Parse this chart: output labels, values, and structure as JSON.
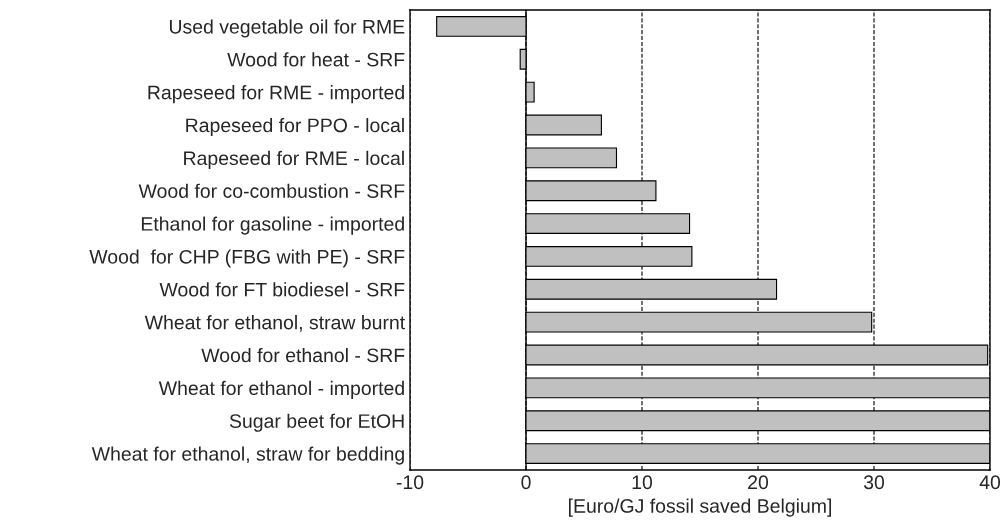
{
  "chart_data": {
    "type": "bar",
    "orientation": "horizontal",
    "categories": [
      "Used vegetable oil for RME",
      "Wood for heat - SRF",
      "Rapeseed for RME - imported",
      "Rapeseed for PPO - local",
      "Rapeseed for RME - local",
      "Wood for co-combustion - SRF",
      "Ethanol for gasoline - imported",
      "Wood  for CHP (FBG with PE) - SRF",
      "Wood for FT biodiesel - SRF",
      "Wheat for ethanol, straw burnt",
      "Wood for ethanol - SRF",
      "Wheat for ethanol - imported",
      "Sugar beet for EtOH",
      "Wheat for ethanol, straw for bedding"
    ],
    "values": [
      -7.7,
      -0.5,
      0.7,
      6.5,
      7.8,
      11.2,
      14.1,
      14.3,
      21.6,
      29.8,
      39.8,
      40,
      40,
      40
    ],
    "color": "#c0c0c0",
    "xlabel": "[Euro/GJ fossil saved Belgium]",
    "xlim": [
      -10,
      40
    ],
    "xticks": [
      -10,
      0,
      10,
      20,
      30,
      40
    ],
    "grid": "x",
    "line_style": "dashed",
    "ref_lines": [
      {
        "axis": "x",
        "value": 0,
        "color": "#000000",
        "line_style": "solid"
      }
    ]
  }
}
